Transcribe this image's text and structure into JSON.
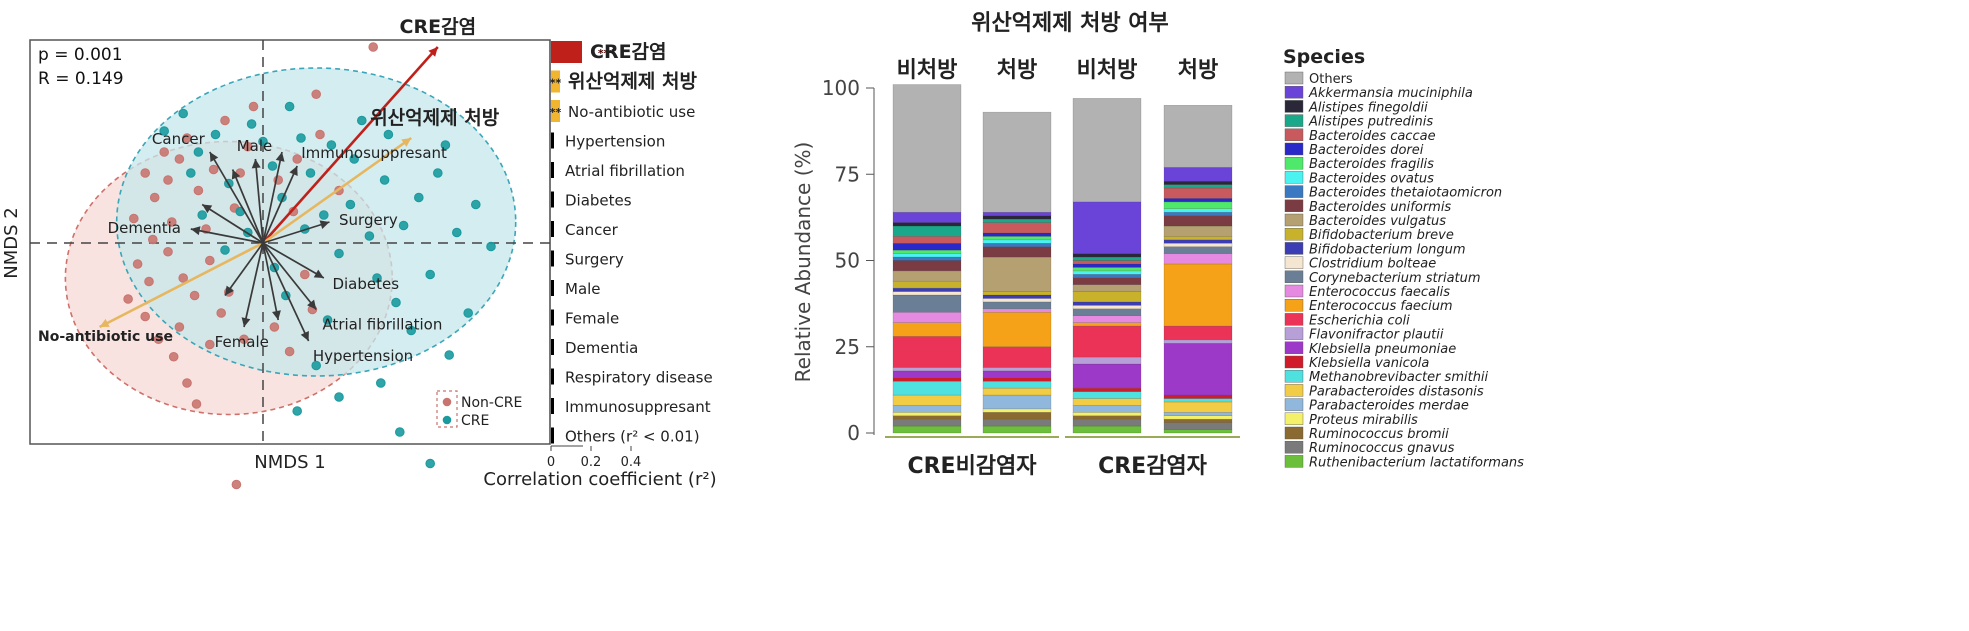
{
  "chart_data": [
    {
      "type": "scatter",
      "stats": [
        "p = 0.001",
        "R = 0.149"
      ],
      "xlabel": "NMDS 1",
      "ylabel": "NMDS 2",
      "legend": {
        "placement": "bottom-right",
        "entries": [
          {
            "label": "Non-CRE",
            "color": "#c9746f"
          },
          {
            "label": "CRE",
            "color": "#1a9a9e"
          }
        ]
      },
      "groups": [
        {
          "name": "Non-CRE",
          "color": "#c9746f",
          "points": [
            [
              -0.62,
              -0.42
            ],
            [
              -0.71,
              -0.32
            ],
            [
              -0.66,
              -0.12
            ],
            [
              -0.58,
              0.02
            ],
            [
              -0.68,
              0.14
            ],
            [
              -0.57,
              0.26
            ],
            [
              -0.5,
              0.36
            ],
            [
              -0.44,
              0.48
            ],
            [
              -0.4,
              0.6
            ],
            [
              -0.34,
              0.3
            ],
            [
              -0.3,
              0.08
            ],
            [
              -0.28,
              -0.1
            ],
            [
              -0.55,
              -0.55
            ],
            [
              -0.47,
              -0.65
            ],
            [
              -0.4,
              -0.8
            ],
            [
              -0.35,
              -0.92
            ],
            [
              -0.28,
              -0.58
            ],
            [
              -0.22,
              -0.4
            ],
            [
              -0.18,
              -0.28
            ],
            [
              -0.15,
              0.2
            ],
            [
              -0.12,
              0.4
            ],
            [
              -0.08,
              0.55
            ],
            [
              -0.2,
              0.7
            ],
            [
              -0.05,
              0.78
            ],
            [
              -0.48,
              0.12
            ],
            [
              -0.42,
              -0.2
            ],
            [
              -0.36,
              -0.3
            ],
            [
              -0.62,
              0.4
            ],
            [
              -0.52,
              0.52
            ],
            [
              -0.44,
              -0.48
            ],
            [
              -0.1,
              -0.55
            ],
            [
              0.06,
              -0.48
            ],
            [
              0.14,
              -0.62
            ],
            [
              0.08,
              0.36
            ],
            [
              0.18,
              0.48
            ],
            [
              0.22,
              -0.18
            ],
            [
              0.3,
              0.62
            ],
            [
              0.58,
              1.12
            ],
            [
              0.28,
              0.85
            ],
            [
              0.16,
              0.18
            ],
            [
              -0.14,
              -1.38
            ],
            [
              0.4,
              0.3
            ],
            [
              -0.26,
              0.42
            ],
            [
              -0.6,
              -0.22
            ],
            [
              -0.5,
              -0.05
            ],
            [
              0.26,
              -0.38
            ]
          ]
        },
        {
          "name": "CRE",
          "color": "#1a9a9e",
          "points": [
            [
              -0.52,
              0.64
            ],
            [
              -0.42,
              0.74
            ],
            [
              -0.34,
              0.52
            ],
            [
              -0.25,
              0.62
            ],
            [
              -0.18,
              0.34
            ],
            [
              -0.12,
              0.18
            ],
            [
              -0.06,
              0.68
            ],
            [
              0.0,
              0.58
            ],
            [
              0.05,
              0.44
            ],
            [
              0.1,
              0.26
            ],
            [
              0.14,
              0.78
            ],
            [
              0.2,
              0.6
            ],
            [
              0.25,
              0.4
            ],
            [
              0.32,
              0.16
            ],
            [
              0.36,
              0.56
            ],
            [
              0.4,
              -0.06
            ],
            [
              0.46,
              0.22
            ],
            [
              0.52,
              0.7
            ],
            [
              0.56,
              0.04
            ],
            [
              0.6,
              -0.2
            ],
            [
              0.64,
              0.36
            ],
            [
              0.7,
              -0.34
            ],
            [
              0.74,
              0.1
            ],
            [
              0.78,
              -0.5
            ],
            [
              0.82,
              0.26
            ],
            [
              0.88,
              -0.18
            ],
            [
              0.92,
              0.4
            ],
            [
              0.98,
              -0.64
            ],
            [
              1.02,
              0.06
            ],
            [
              1.08,
              -0.4
            ],
            [
              1.12,
              0.22
            ],
            [
              0.34,
              -0.44
            ],
            [
              0.28,
              -0.7
            ],
            [
              0.4,
              -0.88
            ],
            [
              0.18,
              -0.96
            ],
            [
              0.62,
              -0.8
            ],
            [
              0.72,
              -1.08
            ],
            [
              0.88,
              -1.26
            ],
            [
              -0.32,
              0.16
            ],
            [
              -0.38,
              0.4
            ],
            [
              -0.2,
              -0.04
            ],
            [
              -0.08,
              0.06
            ],
            [
              0.06,
              -0.14
            ],
            [
              0.22,
              0.08
            ],
            [
              0.48,
              0.48
            ],
            [
              0.66,
              0.62
            ],
            [
              1.2,
              -0.02
            ],
            [
              0.96,
              0.56
            ],
            [
              0.12,
              -0.3
            ]
          ]
        }
      ],
      "ellipses": [
        {
          "group": "Non-CRE",
          "center": [
            -0.18,
            -0.2
          ],
          "radii": [
            0.86,
            0.78
          ],
          "fill": "#f7d9d6",
          "stroke": "#d0706a"
        },
        {
          "group": "CRE",
          "center": [
            0.28,
            0.12
          ],
          "radii": [
            1.05,
            0.88
          ],
          "fill": "#c6e7eb",
          "stroke": "#3aa6b8"
        }
      ],
      "vectors": [
        {
          "label": "CRE감염",
          "x": 0.92,
          "y": 1.12,
          "color": "#c0201a",
          "bold": true
        },
        {
          "label": "위산억제제 처방",
          "x": 0.78,
          "y": 0.6,
          "color": "#e6b75e",
          "bold": true
        },
        {
          "label": "No-antibiotic use",
          "x": -0.86,
          "y": -0.48,
          "color": "#e6b75e",
          "bold": true
        },
        {
          "label": "Cancer",
          "x": -0.28,
          "y": 0.52,
          "color": "#3a3a3a"
        },
        {
          "label": "Male",
          "x": -0.04,
          "y": 0.48,
          "color": "#3a3a3a"
        },
        {
          "label": "Immunosuppresant",
          "x": 0.18,
          "y": 0.44,
          "color": "#3a3a3a"
        },
        {
          "label": "Surgery",
          "x": 0.35,
          "y": 0.12,
          "color": "#3a3a3a"
        },
        {
          "label": "Dementia",
          "x": -0.38,
          "y": 0.08,
          "color": "#3a3a3a"
        },
        {
          "label": "Diabetes",
          "x": 0.32,
          "y": -0.2,
          "color": "#3a3a3a"
        },
        {
          "label": "Atrial fibrillation",
          "x": 0.28,
          "y": -0.38,
          "color": "#3a3a3a"
        },
        {
          "label": "Female",
          "x": -0.1,
          "y": -0.48,
          "color": "#3a3a3a"
        },
        {
          "label": "Hypertension",
          "x": 0.24,
          "y": -0.56,
          "color": "#3a3a3a"
        },
        {
          "label": "",
          "x": -0.32,
          "y": 0.22,
          "color": "#3a3a3a"
        },
        {
          "label": "",
          "x": -0.16,
          "y": 0.42,
          "color": "#3a3a3a"
        },
        {
          "label": "",
          "x": 0.1,
          "y": 0.52,
          "color": "#3a3a3a"
        },
        {
          "label": "",
          "x": 0.08,
          "y": -0.44,
          "color": "#3a3a3a"
        },
        {
          "label": "",
          "x": -0.2,
          "y": -0.3,
          "color": "#3a3a3a"
        }
      ]
    },
    {
      "type": "bar",
      "orientation": "horizontal",
      "xlabel": "Correlation coefficient (r²)",
      "ticks": [
        "0",
        "0.2",
        "0.4"
      ],
      "xlim": [
        0,
        0.4
      ],
      "bars": [
        {
          "label": "CRE감염",
          "value": 0.155,
          "color": "#c0201a",
          "sig": "***",
          "bold": true
        },
        {
          "label": "위산억제제 처방",
          "value": 0.045,
          "color": "#f1b52f",
          "sig": "**",
          "bold": true
        },
        {
          "label": "No-antibiotic use",
          "value": 0.045,
          "color": "#f1b52f",
          "sig": "**",
          "bold": false
        },
        {
          "label": "Hypertension",
          "value": 0.012,
          "color": "#000000",
          "sig": "",
          "bold": false
        },
        {
          "label": "Atrial fibrillation",
          "value": 0.008,
          "color": "#000000",
          "sig": "",
          "bold": false
        },
        {
          "label": "Diabetes",
          "value": 0.008,
          "color": "#000000",
          "sig": "",
          "bold": false
        },
        {
          "label": "Cancer",
          "value": 0.007,
          "color": "#000000",
          "sig": "",
          "bold": false
        },
        {
          "label": "Surgery",
          "value": 0.006,
          "color": "#000000",
          "sig": "",
          "bold": false
        },
        {
          "label": "Male",
          "value": 0.006,
          "color": "#000000",
          "sig": "",
          "bold": false
        },
        {
          "label": "Female",
          "value": 0.006,
          "color": "#000000",
          "sig": "",
          "bold": false
        },
        {
          "label": "Dementia",
          "value": 0.005,
          "color": "#000000",
          "sig": "",
          "bold": false
        },
        {
          "label": "Respiratory disease",
          "value": 0.004,
          "color": "#000000",
          "sig": "",
          "bold": false
        },
        {
          "label": "Immunosuppresant",
          "value": 0.004,
          "color": "#000000",
          "sig": "",
          "bold": false
        },
        {
          "label": "Others (r² < 0.01)",
          "value": 0.004,
          "color": "#000000",
          "sig": "",
          "bold": false
        }
      ]
    },
    {
      "type": "bar",
      "stacked": true,
      "title": "위산억제제 처방 여부",
      "ylabel": "Relative Abundance (%)",
      "ylim": [
        0,
        100
      ],
      "yticks": [
        0,
        25,
        50,
        75,
        100
      ],
      "categories": [
        "비처방",
        "처방",
        "비처방",
        "처방"
      ],
      "groups": [
        {
          "label": "CRE비감염자",
          "span": [
            0,
            1
          ]
        },
        {
          "label": "CRE감염자",
          "span": [
            2,
            3
          ]
        }
      ],
      "legend_title": "Species",
      "series": [
        {
          "name": "Ruthenibacterium lactatiformans",
          "color": "#6cbf3a",
          "values": [
            2,
            2,
            2,
            1
          ]
        },
        {
          "name": "Ruminococcus gnavus",
          "color": "#7a7a7a",
          "values": [
            2,
            2,
            2,
            2
          ]
        },
        {
          "name": "Ruminococcus bromii",
          "color": "#8a6a30",
          "values": [
            1,
            2,
            1,
            1
          ]
        },
        {
          "name": "Proteus mirabilis",
          "color": "#f4f06a",
          "values": [
            1,
            1,
            1,
            1
          ]
        },
        {
          "name": "Parabacteroides merdae",
          "color": "#8fb8dc",
          "values": [
            2,
            4,
            2,
            1
          ]
        },
        {
          "name": "Parabacteroides distasonis",
          "color": "#f1cc44",
          "values": [
            3,
            2,
            2,
            3
          ]
        },
        {
          "name": "Methanobrevibacter smithii",
          "color": "#4fe0e0",
          "values": [
            4,
            2,
            2,
            1
          ]
        },
        {
          "name": "Klebsiella vanicola",
          "color": "#d01c2a",
          "values": [
            1,
            1,
            1,
            1
          ]
        },
        {
          "name": "Klebsiella pneumoniae",
          "color": "#9c39c8",
          "values": [
            2,
            2,
            7,
            15
          ]
        },
        {
          "name": "Flavonifractor plautii",
          "color": "#b7a0d8",
          "values": [
            1,
            1,
            2,
            1
          ]
        },
        {
          "name": "Escherichia coli",
          "color": "#ea3357",
          "values": [
            9,
            6,
            9,
            4
          ]
        },
        {
          "name": "Enterococcus faecium",
          "color": "#f5a218",
          "values": [
            4,
            10,
            1,
            18
          ]
        },
        {
          "name": "Enterococcus faecalis",
          "color": "#e58ae0",
          "values": [
            3,
            1,
            2,
            3
          ]
        },
        {
          "name": "Corynebacterium striatum",
          "color": "#6a7f96",
          "values": [
            5,
            2,
            2,
            2
          ]
        },
        {
          "name": "Clostridium bolteae",
          "color": "#f4e6d0",
          "values": [
            1,
            1,
            1,
            1
          ]
        },
        {
          "name": "Bifidobacterium longum",
          "color": "#3c3db4",
          "values": [
            1,
            1,
            1,
            1
          ]
        },
        {
          "name": "Bifidobacterium breve",
          "color": "#c8b22c",
          "values": [
            2,
            1,
            3,
            1
          ]
        },
        {
          "name": "Bacteroides vulgatus",
          "color": "#b4a070",
          "values": [
            3,
            10,
            2,
            3
          ]
        },
        {
          "name": "Bacteroides uniformis",
          "color": "#7a3b43",
          "values": [
            3,
            3,
            2,
            3
          ]
        },
        {
          "name": "Bacteroides thetaiotaomicron",
          "color": "#3a78c2",
          "values": [
            1,
            1,
            1,
            1
          ]
        },
        {
          "name": "Bacteroides ovatus",
          "color": "#4af2f0",
          "values": [
            1,
            1,
            1,
            1
          ]
        },
        {
          "name": "Bacteroides fragilis",
          "color": "#4ee86a",
          "values": [
            1,
            1,
            1,
            2
          ]
        },
        {
          "name": "Bacteroides dorei",
          "color": "#2a28c8",
          "values": [
            2,
            1,
            1,
            1
          ]
        },
        {
          "name": "Bacteroides caccae",
          "color": "#c85a5e",
          "values": [
            2,
            3,
            1,
            3
          ]
        },
        {
          "name": "Alistipes putredinis",
          "color": "#1aa88a",
          "values": [
            3,
            1,
            1,
            1
          ]
        },
        {
          "name": "Alistipes finegoldii",
          "color": "#2a2838",
          "values": [
            1,
            1,
            1,
            1
          ]
        },
        {
          "name": "Akkermansia muciniphila",
          "color": "#6a44d8",
          "values": [
            3,
            1,
            15,
            4
          ]
        },
        {
          "name": "Others",
          "color": "#b2b2b2",
          "values": [
            37,
            29,
            30,
            18
          ]
        }
      ]
    }
  ]
}
